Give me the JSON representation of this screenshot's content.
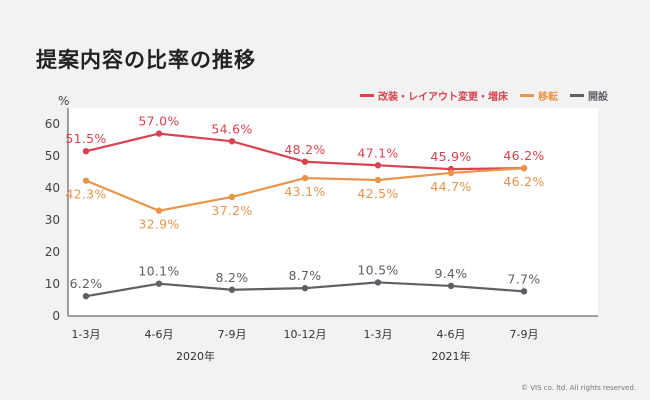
{
  "title": "提案内容の比率の推移",
  "unit": "%",
  "footer": "© VIS co. ltd. All rights reserved.",
  "chart_data": {
    "type": "line",
    "title": "提案内容の比率の推移",
    "xlabel": "",
    "ylabel": "%",
    "categories": [
      "1-3月",
      "4-6月",
      "7-9月",
      "10-12月",
      "1-3月",
      "4-6月",
      "7-9月"
    ],
    "year_groups": [
      {
        "label": "2020年",
        "start": 0,
        "end": 3
      },
      {
        "label": "2021年",
        "start": 4,
        "end": 6
      }
    ],
    "ylim": [
      0,
      65
    ],
    "yticks": [
      0,
      10,
      20,
      30,
      40,
      50,
      60
    ],
    "grid": false,
    "legend_position": "top-right",
    "series": [
      {
        "name": "改装・レイアウト変更・増床",
        "color": "#d9434f",
        "values": [
          51.5,
          57.0,
          54.6,
          48.2,
          47.1,
          45.9,
          46.2
        ],
        "labels": [
          "51.5%",
          "57.0%",
          "54.6%",
          "48.2%",
          "47.1%",
          "45.9%",
          "46.2%"
        ],
        "label_pos": "above"
      },
      {
        "name": "移転",
        "color": "#e8954a",
        "values": [
          42.3,
          32.9,
          37.2,
          43.1,
          42.5,
          44.7,
          46.2
        ],
        "labels": [
          "42.3%",
          "32.9%",
          "37.2%",
          "43.1%",
          "42.5%",
          "44.7%",
          "46.2%"
        ],
        "label_pos": "below"
      },
      {
        "name": "開設",
        "color": "#5f5f66",
        "values": [
          6.2,
          10.1,
          8.2,
          8.7,
          10.5,
          9.4,
          7.7
        ],
        "labels": [
          "6.2%",
          "10.1%",
          "8.2%",
          "8.7%",
          "10.5%",
          "9.4%",
          "7.7%"
        ],
        "label_pos": "above"
      }
    ]
  }
}
